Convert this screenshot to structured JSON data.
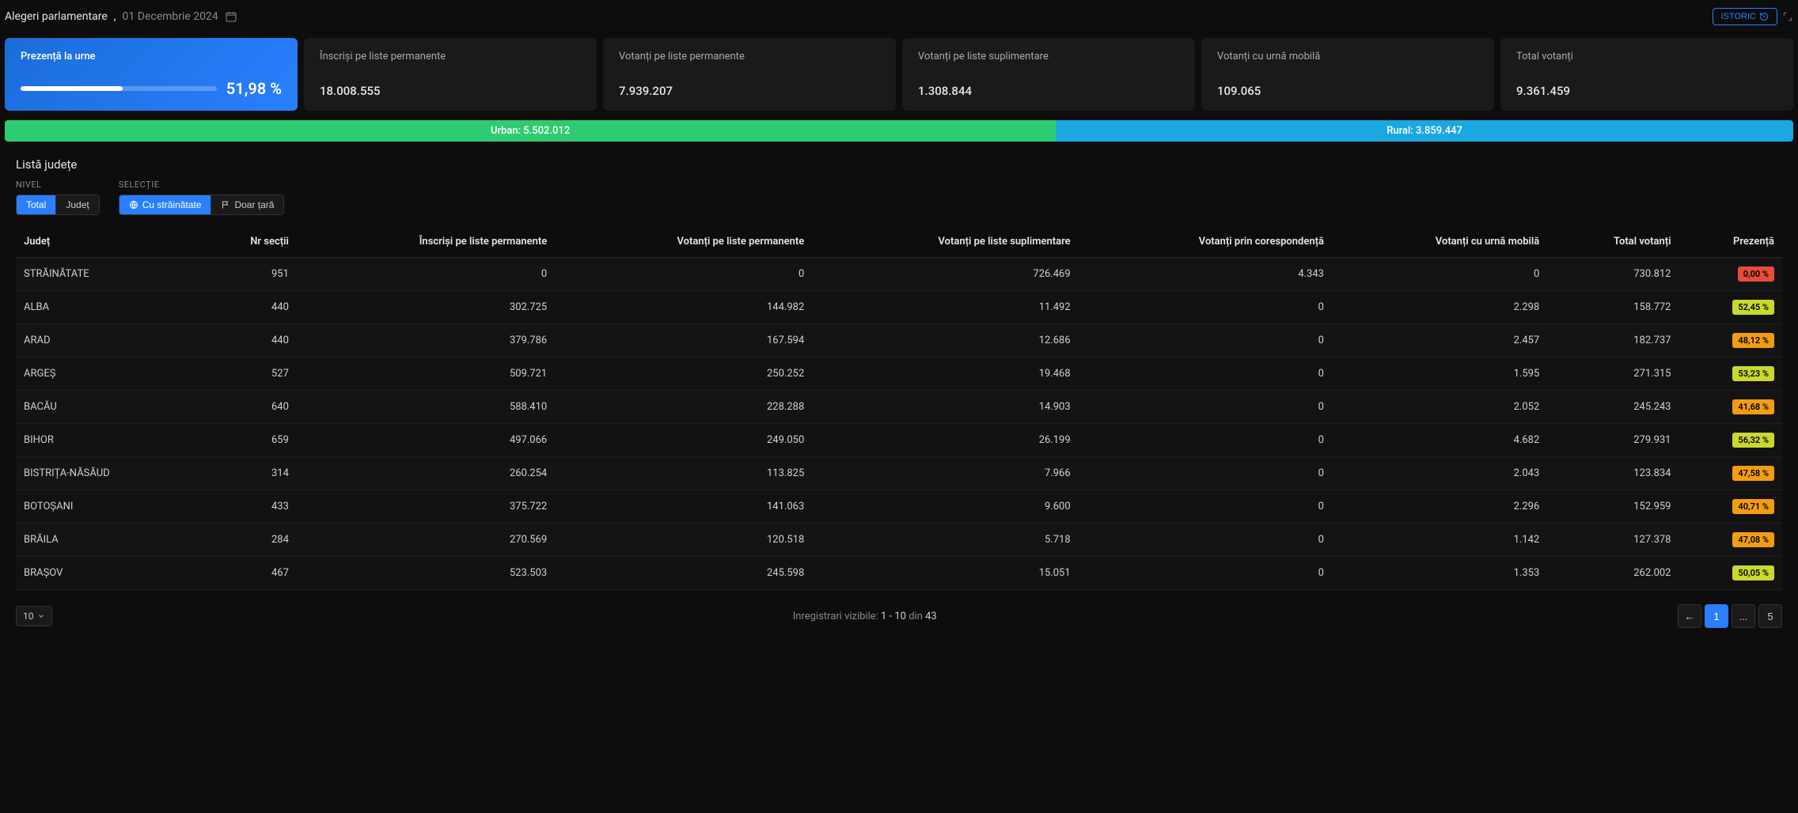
{
  "header": {
    "title": "Alegeri parlamentare",
    "date": "01 Decembrie 2024",
    "istoric_label": "ISTORIC"
  },
  "cards": {
    "turnout": {
      "label": "Prezență la urne",
      "value": "51,98 %",
      "progress_pct": 51.98
    },
    "inscrisi": {
      "label": "Înscriși pe liste permanente",
      "value": "18.008.555"
    },
    "vot_perm": {
      "label": "Votanți pe liste permanente",
      "value": "7.939.207"
    },
    "vot_supl": {
      "label": "Votanți pe liste suplimentare",
      "value": "1.308.844"
    },
    "vot_mobil": {
      "label": "Votanți cu urnă mobilă",
      "value": "109.065"
    },
    "vot_total": {
      "label": "Total votanți",
      "value": "9.361.459"
    }
  },
  "urban_rural": {
    "urban": {
      "label": "Urban: 5.502.012",
      "value": 5502012
    },
    "rural": {
      "label": "Rural: 3.859.447",
      "value": 3859447
    },
    "urban_pct": 58.77,
    "colors": {
      "urban": "#2ecc71",
      "rural": "#1ba8e0"
    }
  },
  "section_title": "Listă județe",
  "filters": {
    "nivel": {
      "label": "NIVEL",
      "options": [
        "Total",
        "Județ"
      ],
      "active": "Total"
    },
    "selectie": {
      "label": "SELECȚIE",
      "options": [
        "Cu străinătate",
        "Doar țară"
      ],
      "active": "Cu străinătate"
    }
  },
  "table": {
    "columns": [
      "Județ",
      "Nr secții",
      "Înscriși pe liste permanente",
      "Votanți pe liste permanente",
      "Votanți pe liste suplimentare",
      "Votanți prin corespondență",
      "Votanți cu urnă mobilă",
      "Total votanți",
      "Prezență"
    ],
    "rows": [
      {
        "judet": "STRĂINĂTATE",
        "sectii": "951",
        "inscrisi": "0",
        "perm": "0",
        "supl": "726.469",
        "coresp": "4.343",
        "mobil": "0",
        "total": "730.812",
        "prezenta": "0,00 %",
        "badge_color": "#e74c3c"
      },
      {
        "judet": "ALBA",
        "sectii": "440",
        "inscrisi": "302.725",
        "perm": "144.982",
        "supl": "11.492",
        "coresp": "0",
        "mobil": "2.298",
        "total": "158.772",
        "prezenta": "52,45 %",
        "badge_color": "#c9d82e"
      },
      {
        "judet": "ARAD",
        "sectii": "440",
        "inscrisi": "379.786",
        "perm": "167.594",
        "supl": "12.686",
        "coresp": "0",
        "mobil": "2.457",
        "total": "182.737",
        "prezenta": "48,12 %",
        "badge_color": "#f39c12"
      },
      {
        "judet": "ARGEȘ",
        "sectii": "527",
        "inscrisi": "509.721",
        "perm": "250.252",
        "supl": "19.468",
        "coresp": "0",
        "mobil": "1.595",
        "total": "271.315",
        "prezenta": "53,23 %",
        "badge_color": "#c9d82e"
      },
      {
        "judet": "BACĂU",
        "sectii": "640",
        "inscrisi": "588.410",
        "perm": "228.288",
        "supl": "14.903",
        "coresp": "0",
        "mobil": "2.052",
        "total": "245.243",
        "prezenta": "41,68 %",
        "badge_color": "#f39c12"
      },
      {
        "judet": "BIHOR",
        "sectii": "659",
        "inscrisi": "497.066",
        "perm": "249.050",
        "supl": "26.199",
        "coresp": "0",
        "mobil": "4.682",
        "total": "279.931",
        "prezenta": "56,32 %",
        "badge_color": "#c9d82e"
      },
      {
        "judet": "BISTRIȚA-NĂSĂUD",
        "sectii": "314",
        "inscrisi": "260.254",
        "perm": "113.825",
        "supl": "7.966",
        "coresp": "0",
        "mobil": "2.043",
        "total": "123.834",
        "prezenta": "47,58 %",
        "badge_color": "#f39c12"
      },
      {
        "judet": "BOTOȘANI",
        "sectii": "433",
        "inscrisi": "375.722",
        "perm": "141.063",
        "supl": "9.600",
        "coresp": "0",
        "mobil": "2.296",
        "total": "152.959",
        "prezenta": "40,71 %",
        "badge_color": "#f39c12"
      },
      {
        "judet": "BRĂILA",
        "sectii": "284",
        "inscrisi": "270.569",
        "perm": "120.518",
        "supl": "5.718",
        "coresp": "0",
        "mobil": "1.142",
        "total": "127.378",
        "prezenta": "47,08 %",
        "badge_color": "#f39c12"
      },
      {
        "judet": "BRAȘOV",
        "sectii": "467",
        "inscrisi": "523.503",
        "perm": "245.598",
        "supl": "15.051",
        "coresp": "0",
        "mobil": "1.353",
        "total": "262.002",
        "prezenta": "50,05 %",
        "badge_color": "#c9d82e"
      }
    ]
  },
  "pager": {
    "page_size": "10",
    "info_prefix": "Inregistrari vizibile: ",
    "range": "1 - 10",
    "info_mid": " din ",
    "total": "43",
    "pages": [
      "1",
      "...",
      "5"
    ]
  }
}
